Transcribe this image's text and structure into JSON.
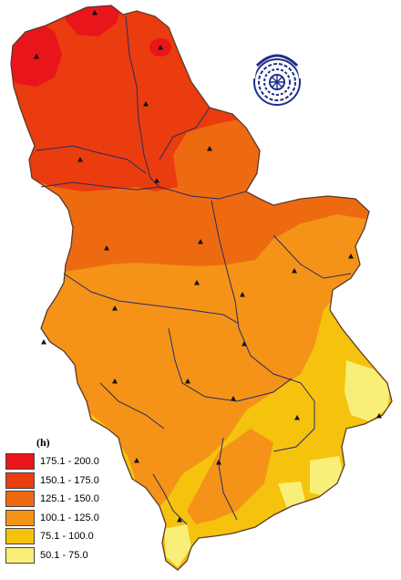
{
  "map": {
    "zone_colors": {
      "z175_200": "#e8151a",
      "z150_175": "#ea3c0e",
      "z125_150": "#ee6a10",
      "z100_125": "#f49318",
      "z75_100": "#f5c20e",
      "z50_75": "#f8ef78"
    },
    "border_color": "#5a3a2a",
    "river_color": "#2a2a66",
    "station_marker_color": "#111111"
  },
  "legend": {
    "unit": "(h)",
    "items": [
      {
        "label": "175.1 - 200.0",
        "color": "#e8151a"
      },
      {
        "label": "150.1 - 175.0",
        "color": "#ea3c0e"
      },
      {
        "label": "125.1 - 150.0",
        "color": "#ee6a10"
      },
      {
        "label": "100.1 - 125.0",
        "color": "#f49318"
      },
      {
        "label": "75.1 - 100.0",
        "color": "#f5c20e"
      },
      {
        "label": "50.1 - 75.0",
        "color": "#f8ef78"
      }
    ]
  },
  "logo": {
    "icon": "hydromet-service-logo",
    "color": "#1f2f8a"
  }
}
